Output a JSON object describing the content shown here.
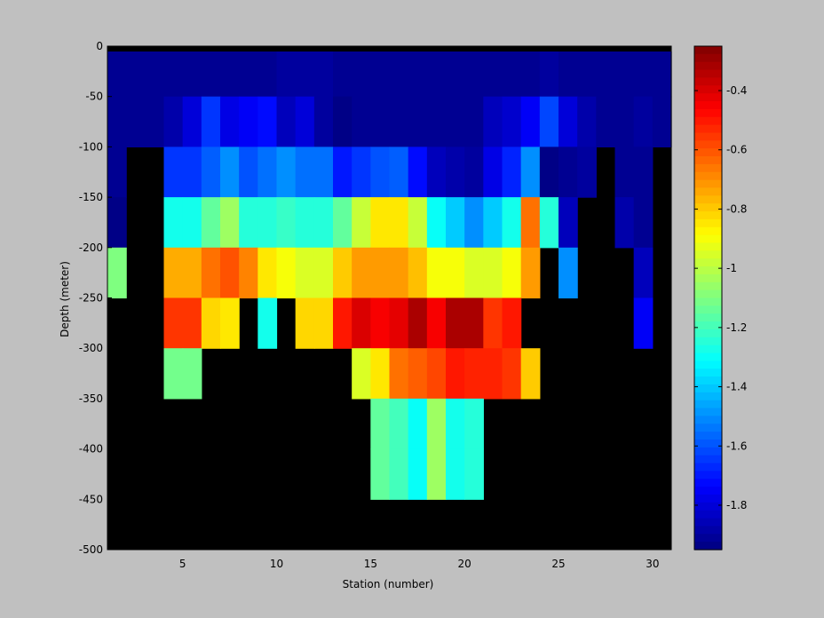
{
  "chart_data": {
    "type": "heatmap",
    "title": "",
    "xlabel": "Station (number)",
    "ylabel": "Depth (meter)",
    "xlim": [
      1,
      31
    ],
    "ylim": [
      -500,
      0
    ],
    "x_ticks": [
      5,
      10,
      15,
      20,
      25,
      30
    ],
    "y_ticks": [
      0,
      -50,
      -100,
      -150,
      -200,
      -250,
      -300,
      -350,
      -400,
      -450,
      -500
    ],
    "colorbar": {
      "colormap": "jet",
      "range": [
        -1.95,
        -0.25
      ],
      "ticks": [
        -0.4,
        -0.6,
        -0.8,
        -1,
        -1.2,
        -1.4,
        -1.6,
        -1.8
      ]
    },
    "missing_color": "#000000",
    "stations": [
      1,
      2,
      3,
      4,
      5,
      6,
      7,
      8,
      9,
      10,
      11,
      12,
      13,
      14,
      15,
      16,
      17,
      18,
      19,
      20,
      21,
      22,
      23,
      24,
      25,
      26,
      27,
      28,
      29,
      30
    ],
    "depths": [
      -25,
      -75,
      -125,
      -175,
      -225,
      -275,
      -325,
      -375,
      -425,
      -475
    ],
    "values": [
      [
        -1.92,
        -1.92,
        -1.92,
        -1.92,
        -1.92,
        -1.92,
        -1.92,
        -1.92,
        -1.92,
        -1.9,
        -1.9,
        -1.9,
        -1.92,
        -1.92,
        -1.92,
        -1.92,
        -1.92,
        -1.92,
        -1.92,
        -1.92,
        -1.92,
        -1.92,
        -1.92,
        -1.9,
        -1.92,
        -1.92,
        -1.92,
        -1.92,
        -1.92,
        -1.92
      ],
      [
        -1.92,
        -1.92,
        -1.92,
        -1.88,
        -1.8,
        -1.65,
        -1.78,
        -1.75,
        -1.72,
        -1.85,
        -1.8,
        -1.9,
        -1.94,
        -1.92,
        -1.92,
        -1.92,
        -1.92,
        -1.92,
        -1.92,
        -1.92,
        -1.85,
        -1.82,
        -1.75,
        -1.62,
        -1.8,
        -1.88,
        -1.92,
        -1.92,
        -1.9,
        -1.92
      ],
      [
        -1.92,
        null,
        null,
        -1.65,
        -1.65,
        -1.58,
        -1.5,
        -1.6,
        -1.55,
        -1.5,
        -1.55,
        -1.55,
        -1.7,
        -1.65,
        -1.6,
        -1.58,
        -1.72,
        -1.85,
        -1.88,
        -1.9,
        -1.78,
        -1.68,
        -1.5,
        -1.94,
        -1.92,
        -1.9,
        null,
        -1.92,
        -1.92,
        null
      ],
      [
        -1.94,
        null,
        null,
        -1.28,
        -1.28,
        -1.15,
        -1.05,
        -1.25,
        -1.25,
        -1.22,
        -1.25,
        -1.25,
        -1.15,
        -0.98,
        -0.85,
        -0.85,
        -0.98,
        -1.3,
        -1.4,
        -1.5,
        -1.4,
        -1.28,
        -0.65,
        -1.25,
        -1.85,
        null,
        null,
        -1.88,
        -1.92,
        null
      ],
      [
        -1.1,
        null,
        null,
        -0.75,
        -0.75,
        -0.65,
        -0.6,
        -0.68,
        -0.85,
        -0.9,
        -0.95,
        -0.95,
        -0.8,
        -0.72,
        -0.72,
        -0.72,
        -0.78,
        -0.9,
        -0.9,
        -0.95,
        -0.95,
        -0.9,
        -0.72,
        null,
        -1.5,
        null,
        null,
        null,
        -1.85,
        null
      ],
      [
        null,
        null,
        null,
        -0.55,
        -0.55,
        -0.82,
        -0.85,
        null,
        -1.28,
        null,
        -0.82,
        -0.82,
        -0.5,
        -0.4,
        -0.45,
        -0.42,
        -0.32,
        -0.45,
        -0.32,
        -0.32,
        -0.55,
        -0.5,
        null,
        null,
        null,
        null,
        null,
        null,
        -1.75,
        null
      ],
      [
        null,
        null,
        null,
        -1.12,
        -1.12,
        null,
        null,
        null,
        null,
        null,
        null,
        null,
        null,
        -0.95,
        -0.85,
        -0.65,
        -0.62,
        -0.58,
        -0.5,
        -0.52,
        -0.52,
        -0.55,
        -0.8,
        null,
        null,
        null,
        null,
        null,
        null,
        null
      ],
      [
        null,
        null,
        null,
        null,
        null,
        null,
        null,
        null,
        null,
        null,
        null,
        null,
        null,
        null,
        -1.15,
        -1.2,
        -1.3,
        -1.05,
        -1.28,
        -1.25,
        null,
        null,
        null,
        null,
        null,
        null,
        null,
        null,
        null,
        null
      ],
      [
        null,
        null,
        null,
        null,
        null,
        null,
        null,
        null,
        null,
        null,
        null,
        null,
        null,
        null,
        -1.15,
        -1.2,
        -1.3,
        -1.05,
        -1.28,
        -1.25,
        null,
        null,
        null,
        null,
        null,
        null,
        null,
        null,
        null,
        null
      ],
      [
        null,
        null,
        null,
        null,
        null,
        null,
        null,
        null,
        null,
        null,
        null,
        null,
        null,
        null,
        null,
        null,
        null,
        null,
        null,
        null,
        null,
        null,
        null,
        null,
        null,
        null,
        null,
        null,
        null,
        null
      ]
    ],
    "grid": false,
    "legend": "none"
  }
}
